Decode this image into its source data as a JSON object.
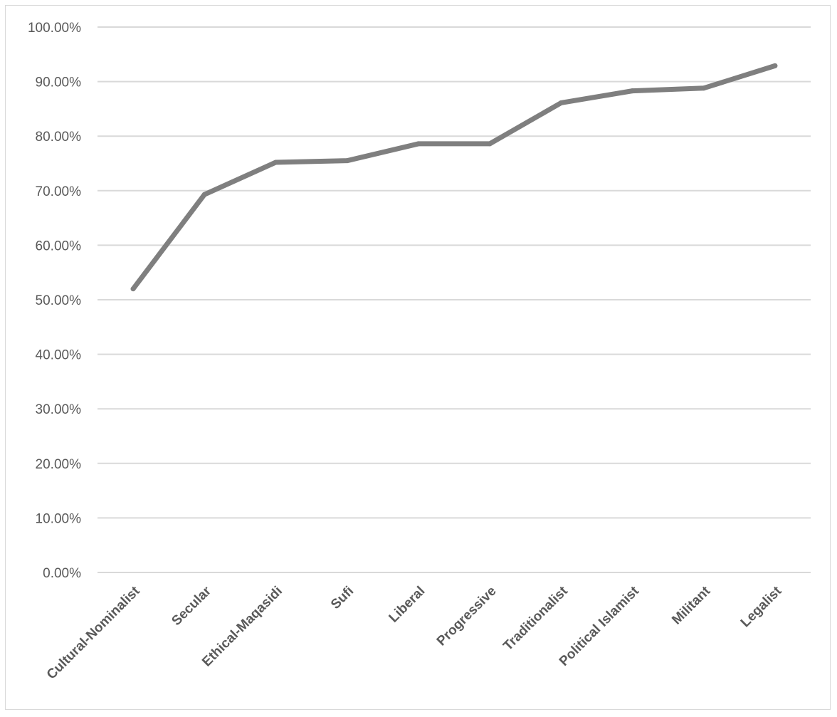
{
  "chart_data": {
    "type": "line",
    "title": "",
    "xlabel": "",
    "ylabel": "",
    "categories": [
      "Cultural-Nominalist",
      "Secular",
      "Ethical-Maqasidi",
      "Sufi",
      "Liberal",
      "Progressive",
      "Traditionalist",
      "Political Islamist",
      "Militant",
      "Legalist"
    ],
    "series": [
      {
        "values": [
          52.0,
          69.3,
          75.2,
          75.5,
          78.6,
          78.6,
          86.1,
          88.3,
          88.8,
          92.9
        ]
      }
    ],
    "ylim": [
      0,
      100
    ],
    "yticks": [
      0,
      10,
      20,
      30,
      40,
      50,
      60,
      70,
      80,
      90,
      100
    ],
    "ytick_labels": [
      "0.00%",
      "10.00%",
      "20.00%",
      "30.00%",
      "40.00%",
      "50.00%",
      "60.00%",
      "70.00%",
      "80.00%",
      "90.00%",
      "100.00%"
    ],
    "grid": true,
    "legend": "none",
    "colors": {
      "line": "#7f7f7f",
      "grid": "#d9d9d9",
      "text": "#595959"
    }
  }
}
